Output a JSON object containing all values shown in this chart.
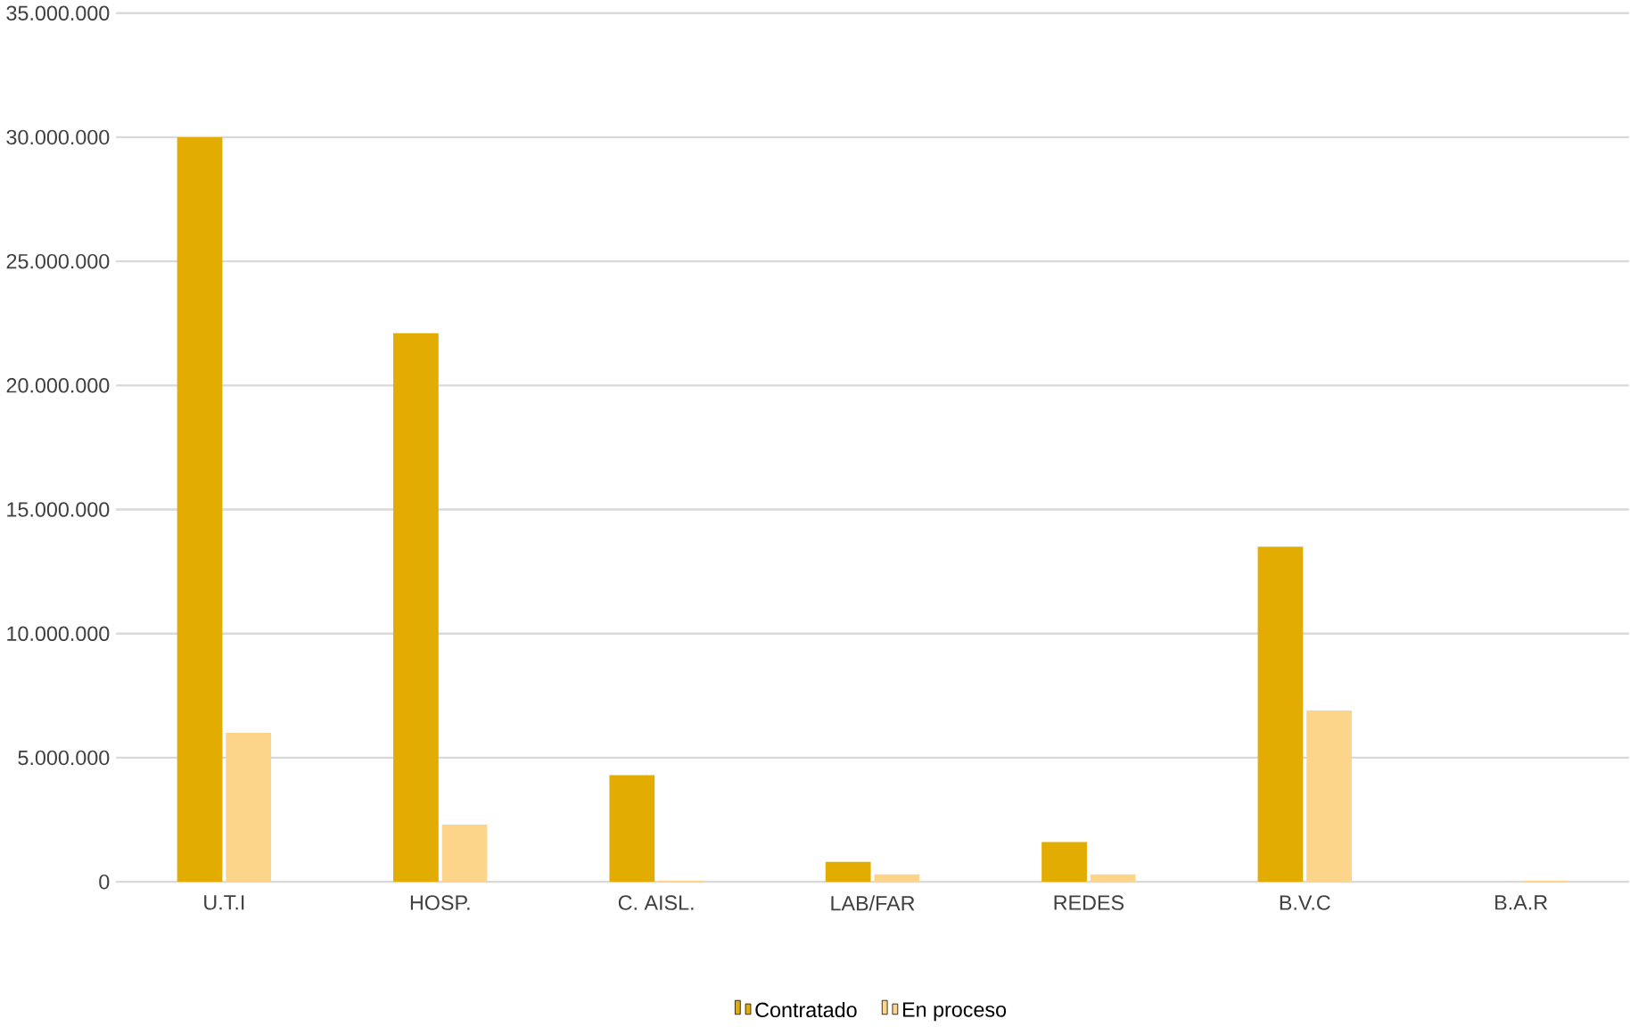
{
  "chart_data": {
    "type": "bar",
    "categories": [
      "U.T.I",
      "HOSP.",
      "C. AISL.",
      "LAB/FAR",
      "REDES",
      "B.V.C",
      "B.A.R"
    ],
    "series": [
      {
        "name": "Contratado",
        "color": "#e3ac00",
        "values": [
          30000000,
          22100000,
          4300000,
          800000,
          1600000,
          13500000,
          0
        ]
      },
      {
        "name": "En proceso",
        "color": "#fdd58a",
        "values": [
          6000000,
          2300000,
          50000,
          300000,
          300000,
          6900000,
          50000
        ]
      }
    ],
    "ylim": [
      0,
      35000000
    ],
    "yticks": [
      {
        "value": 0,
        "label": "0"
      },
      {
        "value": 5000000,
        "label": "5.000.000"
      },
      {
        "value": 10000000,
        "label": "10.000.000"
      },
      {
        "value": 15000000,
        "label": "15.000.000"
      },
      {
        "value": 20000000,
        "label": "20.000.000"
      },
      {
        "value": 25000000,
        "label": "25.000.000"
      },
      {
        "value": 30000000,
        "label": "30.000.000"
      },
      {
        "value": 35000000,
        "label": "35.000.000"
      }
    ],
    "grid": "y",
    "legend": "bottom"
  }
}
